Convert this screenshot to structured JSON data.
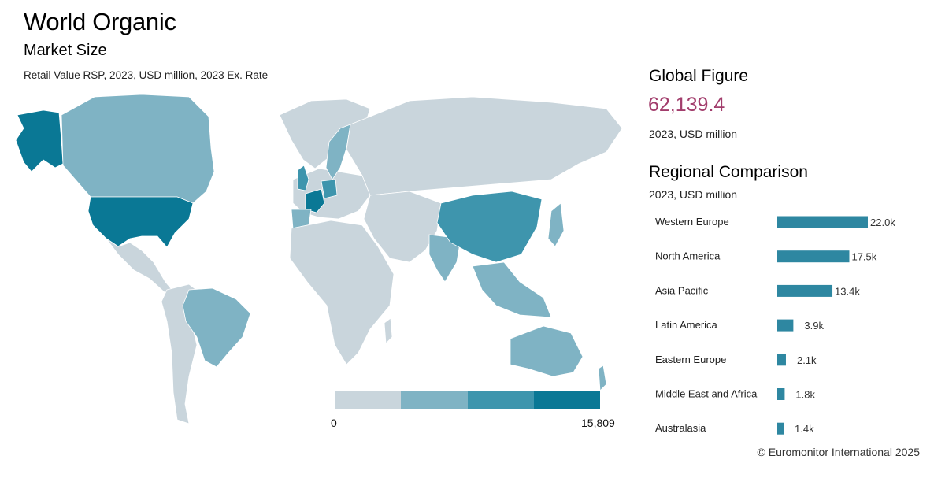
{
  "header": {
    "title": "World Organic",
    "subtitle": "Market Size",
    "note": "Retail Value RSP, 2023, USD million, 2023 Ex. Rate"
  },
  "map": {
    "legend_min": "0",
    "legend_max": "15,809",
    "colors": [
      "#c9d5dc",
      "#7fb3c4",
      "#3e95ad",
      "#0a7895"
    ],
    "no_data_color": "#c9d5dc"
  },
  "global_figure": {
    "title": "Global Figure",
    "value": "62,139.4",
    "unit": "2023,  USD million",
    "value_color": "#a23d6c"
  },
  "regional": {
    "title": "Regional Comparison",
    "unit": "2023,  USD million"
  },
  "chart_data": {
    "type": "bar",
    "orientation": "horizontal",
    "categories": [
      "Western Europe",
      "North America",
      "Asia Pacific",
      "Latin America",
      "Eastern Europe",
      "Middle East and Africa",
      "Australasia"
    ],
    "values": [
      22.0,
      17.5,
      13.4,
      3.9,
      2.1,
      1.8,
      1.4
    ],
    "value_labels": [
      "22.0k",
      "17.5k",
      "13.4k",
      "3.9k",
      "2.1k",
      "1.8k",
      "1.4k"
    ],
    "bar_color": "#2e87a1",
    "xlim": [
      0,
      22.0
    ]
  },
  "footer": {
    "copyright": "© Euromonitor International 2025"
  }
}
